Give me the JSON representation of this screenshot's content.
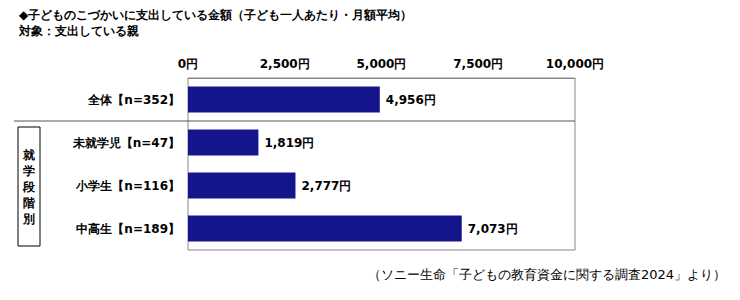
{
  "chart_data": {
    "type": "bar",
    "orientation": "horizontal",
    "title": "◆子どものこづかいに支出している金額（子ども一人あたり・月額平均）",
    "subtitle": "対象：支出している親",
    "categories": [
      "全体【n=352】",
      "未就学児【n=47】",
      "小学生【n=116】",
      "中高生【n=189】"
    ],
    "values": [
      4956,
      1819,
      2777,
      7073
    ],
    "value_labels": [
      "4,956円",
      "1,819円",
      "2,777円",
      "7,073円"
    ],
    "data_labels": true,
    "color": "#14148c",
    "xlim": [
      0,
      10000
    ],
    "xticks": [
      {
        "value": 0,
        "label": "0円"
      },
      {
        "value": 2500,
        "label": "2,500円"
      },
      {
        "value": 5000,
        "label": "5,000円"
      },
      {
        "value": 7500,
        "label": "7,500円"
      },
      {
        "value": 10000,
        "label": "10,000円"
      }
    ],
    "grid": false,
    "annotations": [
      "就学段階別",
      "（ソニー生命「子どもの教育資金に関する調査2024」より）"
    ]
  }
}
